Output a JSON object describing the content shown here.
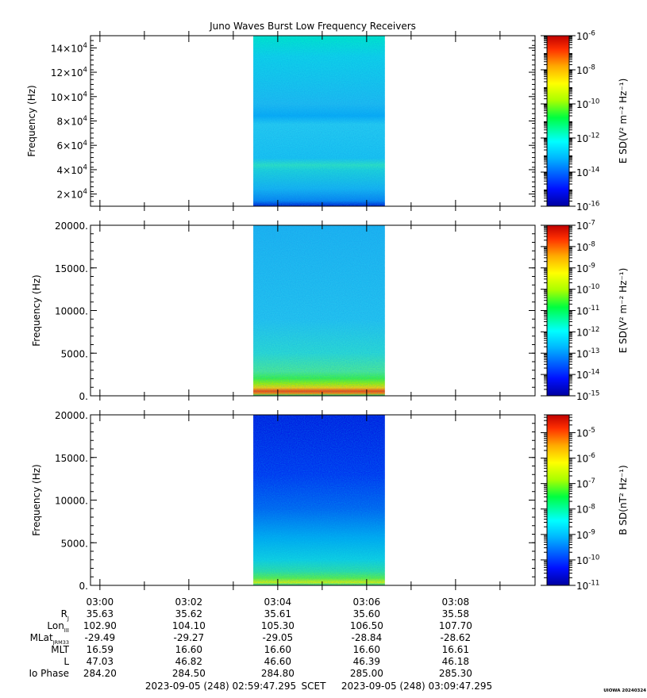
{
  "title": "Juno Waves Burst Low Frequency Receivers",
  "x_tick_labels": [
    "03:00",
    "03:02",
    "03:04",
    "03:06",
    "03:08"
  ],
  "ephemeris": {
    "rows": [
      {
        "label": "R",
        "sub": "J",
        "values": [
          "35.63",
          "35.62",
          "35.61",
          "35.60",
          "35.58"
        ]
      },
      {
        "label": "Lon",
        "sub": "III",
        "values": [
          "102.90",
          "104.10",
          "105.30",
          "106.50",
          "107.70"
        ]
      },
      {
        "label": "MLat",
        "sub": "JRM33",
        "values": [
          "-29.49",
          "-29.27",
          "-29.05",
          "-28.84",
          "-28.62"
        ]
      },
      {
        "label": "MLT",
        "sub": "",
        "values": [
          "16.59",
          "16.60",
          "16.60",
          "16.60",
          "16.61"
        ]
      },
      {
        "label": "L",
        "sub": "",
        "values": [
          "47.03",
          "46.82",
          "46.60",
          "46.39",
          "46.18"
        ]
      },
      {
        "label": "Io Phase",
        "sub": "",
        "values": [
          "284.20",
          "284.50",
          "284.80",
          "285.00",
          "285.30"
        ]
      }
    ]
  },
  "footer": {
    "start": "2023-09-05 (248) 02:59:47.295",
    "scet": "SCET",
    "end": "2023-09-05 (248) 03:09:47.295"
  },
  "watermark": "UIOWA 20240324",
  "colors": {
    "colormap": [
      "#0000a0",
      "#0010ff",
      "#00b4ff",
      "#00ffff",
      "#00ff40",
      "#aaff00",
      "#ffff00",
      "#ffaa00",
      "#ff3000",
      "#c00000"
    ]
  },
  "chart_data": [
    {
      "type": "heatmap",
      "title": "Juno Waves Burst Low Frequency Receivers",
      "ylabel": "Frequency (Hz)",
      "ylim": [
        10000,
        150000
      ],
      "y_tick_values": [
        20000,
        40000,
        60000,
        80000,
        100000,
        120000,
        140000
      ],
      "y_tick_labels": [
        {
          "mant": "2×10",
          "exp": "4"
        },
        {
          "mant": "4×10",
          "exp": "4"
        },
        {
          "mant": "6×10",
          "exp": "4"
        },
        {
          "mant": "8×10",
          "exp": "4"
        },
        {
          "mant": "10×10",
          "exp": "4"
        },
        {
          "mant": "12×10",
          "exp": "4"
        },
        {
          "mant": "14×10",
          "exp": "4"
        }
      ],
      "data_interval": [
        "03:03.30",
        "03:06.30"
      ],
      "colorbar": {
        "label": "E SD(V² m⁻² Hz⁻¹)",
        "range_exp": [
          -16,
          -6
        ],
        "tick_exps": [
          -16,
          -14,
          -12,
          -10,
          -8,
          -6
        ],
        "scale": "log"
      }
    },
    {
      "type": "heatmap",
      "ylabel": "Frequency (Hz)",
      "ylim": [
        0,
        20000
      ],
      "y_tick_values": [
        0,
        5000,
        10000,
        15000,
        20000
      ],
      "y_tick_labels": [
        "0.",
        "5000.",
        "10000.",
        "15000.",
        "20000."
      ],
      "data_interval": [
        "03:03.30",
        "03:06.30"
      ],
      "colorbar": {
        "label": "E SD(V² m⁻² Hz⁻¹)",
        "range_exp": [
          -15,
          -7
        ],
        "tick_exps": [
          -15,
          -14,
          -13,
          -12,
          -11,
          -10,
          -9,
          -8,
          -7
        ],
        "scale": "log"
      }
    },
    {
      "type": "heatmap",
      "ylabel": "Frequency (Hz)",
      "ylim": [
        0,
        20000
      ],
      "y_tick_values": [
        0,
        5000,
        10000,
        15000,
        20000
      ],
      "y_tick_labels": [
        "0.",
        "5000.",
        "10000.",
        "15000.",
        "20000."
      ],
      "data_interval": [
        "03:03.30",
        "03:06.30"
      ],
      "colorbar": {
        "label": "B SD(nT² Hz⁻¹)",
        "range_exp": [
          -11,
          -4.3
        ],
        "tick_exps": [
          -11,
          -10,
          -9,
          -8,
          -7,
          -6,
          -5
        ],
        "scale": "log"
      }
    }
  ]
}
